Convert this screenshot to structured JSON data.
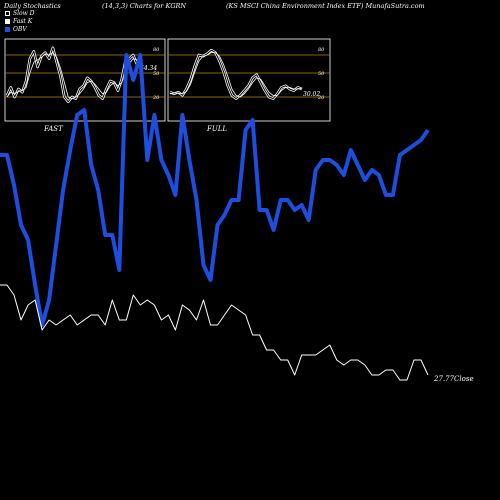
{
  "header": {
    "left": "Daily Stochastics",
    "middle": "(14,3,3) Charts for KGRN",
    "right": "(KS MSCI China  Environment Index ETF) MunafaSutra.com"
  },
  "legend": [
    {
      "label": "Slow  D",
      "swatch": "open-square"
    },
    {
      "label": "Fast K",
      "swatch": "filled-white-square"
    },
    {
      "label": "OBV",
      "swatch": "filled-blue-square"
    }
  ],
  "colors": {
    "background": "#000000",
    "panel_line": "#b8860b",
    "obv": "#1c4fe0",
    "close": "#ffffff",
    "stoch": "#ffffff"
  },
  "chart_data": [
    {
      "type": "line",
      "title": "FAST",
      "ylim": [
        0,
        100
      ],
      "gridlines": [
        20,
        50,
        80
      ],
      "tick_labels": [
        "80",
        "50",
        "20"
      ],
      "last_value_label": "64.34",
      "series": [
        {
          "name": "Fast K",
          "values": [
            22,
            32,
            20,
            30,
            26,
            40,
            74,
            86,
            60,
            78,
            84,
            74,
            92,
            68,
            46,
            20,
            14,
            20,
            18,
            30,
            34,
            44,
            40,
            32,
            22,
            18,
            30,
            40,
            38,
            28,
            42,
            70,
            74,
            80,
            64
          ]
        },
        {
          "name": "Slow  D",
          "values": [
            20,
            26,
            24,
            27,
            28,
            32,
            50,
            68,
            72,
            76,
            82,
            80,
            84,
            76,
            58,
            38,
            20,
            18,
            20,
            24,
            30,
            38,
            40,
            36,
            30,
            24,
            26,
            34,
            38,
            34,
            38,
            52,
            66,
            74,
            72
          ]
        }
      ]
    },
    {
      "type": "line",
      "title": "FULL",
      "ylim": [
        0,
        100
      ],
      "gridlines": [
        20,
        50,
        80
      ],
      "tick_labels": [
        "80",
        "50",
        "20"
      ],
      "last_value_label": "30.02",
      "series": [
        {
          "name": "Full K",
          "values": [
            26,
            24,
            26,
            22,
            30,
            42,
            62,
            80,
            78,
            82,
            88,
            84,
            70,
            52,
            34,
            22,
            18,
            22,
            28,
            34,
            44,
            48,
            38,
            28,
            20,
            18,
            24,
            32,
            34,
            30,
            28,
            32,
            30
          ]
        },
        {
          "name": "Full D",
          "values": [
            24,
            25,
            25,
            24,
            27,
            36,
            52,
            70,
            78,
            80,
            84,
            84,
            78,
            64,
            46,
            30,
            22,
            20,
            24,
            30,
            38,
            44,
            42,
            34,
            26,
            22,
            22,
            28,
            32,
            32,
            30,
            30,
            31
          ]
        }
      ]
    },
    {
      "type": "line",
      "title": "",
      "last_value_label": "27.77Close",
      "series": [
        {
          "name": "OBV",
          "values": [
            345,
            345,
            315,
            275,
            260,
            215,
            175,
            200,
            255,
            310,
            350,
            385,
            390,
            335,
            310,
            265,
            265,
            230,
            445,
            420,
            445,
            340,
            385,
            340,
            325,
            305,
            385,
            340,
            300,
            235,
            220,
            275,
            285,
            300,
            300,
            370,
            380,
            290,
            290,
            270,
            300,
            300,
            290,
            295,
            280,
            330,
            340,
            340,
            335,
            325,
            350,
            335,
            320,
            330,
            325,
            305,
            305,
            345,
            350,
            355,
            360,
            370
          ]
        },
        {
          "name": "Close",
          "values": [
            215,
            215,
            205,
            180,
            195,
            200,
            170,
            180,
            175,
            180,
            185,
            175,
            180,
            185,
            185,
            175,
            200,
            180,
            180,
            205,
            195,
            200,
            195,
            180,
            185,
            170,
            195,
            190,
            180,
            200,
            175,
            175,
            185,
            195,
            190,
            185,
            165,
            165,
            150,
            150,
            140,
            140,
            125,
            145,
            145,
            145,
            150,
            155,
            140,
            135,
            140,
            140,
            135,
            125,
            125,
            130,
            130,
            120,
            120,
            140,
            140,
            125
          ]
        }
      ]
    }
  ]
}
